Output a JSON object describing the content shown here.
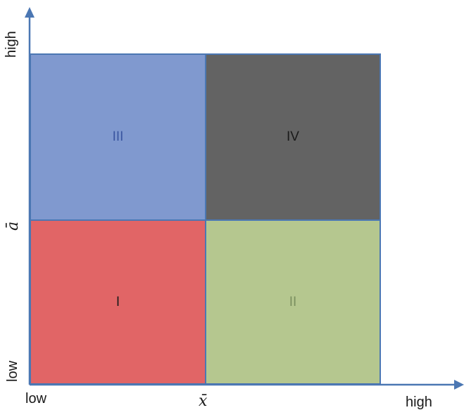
{
  "quadrants": {
    "q1": {
      "label": "I",
      "fill": "#e16566",
      "text_color": "#1a1a1a"
    },
    "q2": {
      "label": "II",
      "fill": "#b5c78f",
      "text_color": "#7a8f5f"
    },
    "q3": {
      "label": "III",
      "fill": "#8099cf",
      "text_color": "#3a56a0"
    },
    "q4": {
      "label": "IV",
      "fill": "#636363",
      "text_color": "#1a1a1a"
    }
  },
  "x_axis": {
    "low_label": "low",
    "mean_label": "x̄",
    "high_label": "high"
  },
  "y_axis": {
    "low_label": "low",
    "mean_label": "ā",
    "high_label": "high"
  },
  "colors": {
    "axis": "#4b77b3",
    "border": "#4b77b3"
  }
}
